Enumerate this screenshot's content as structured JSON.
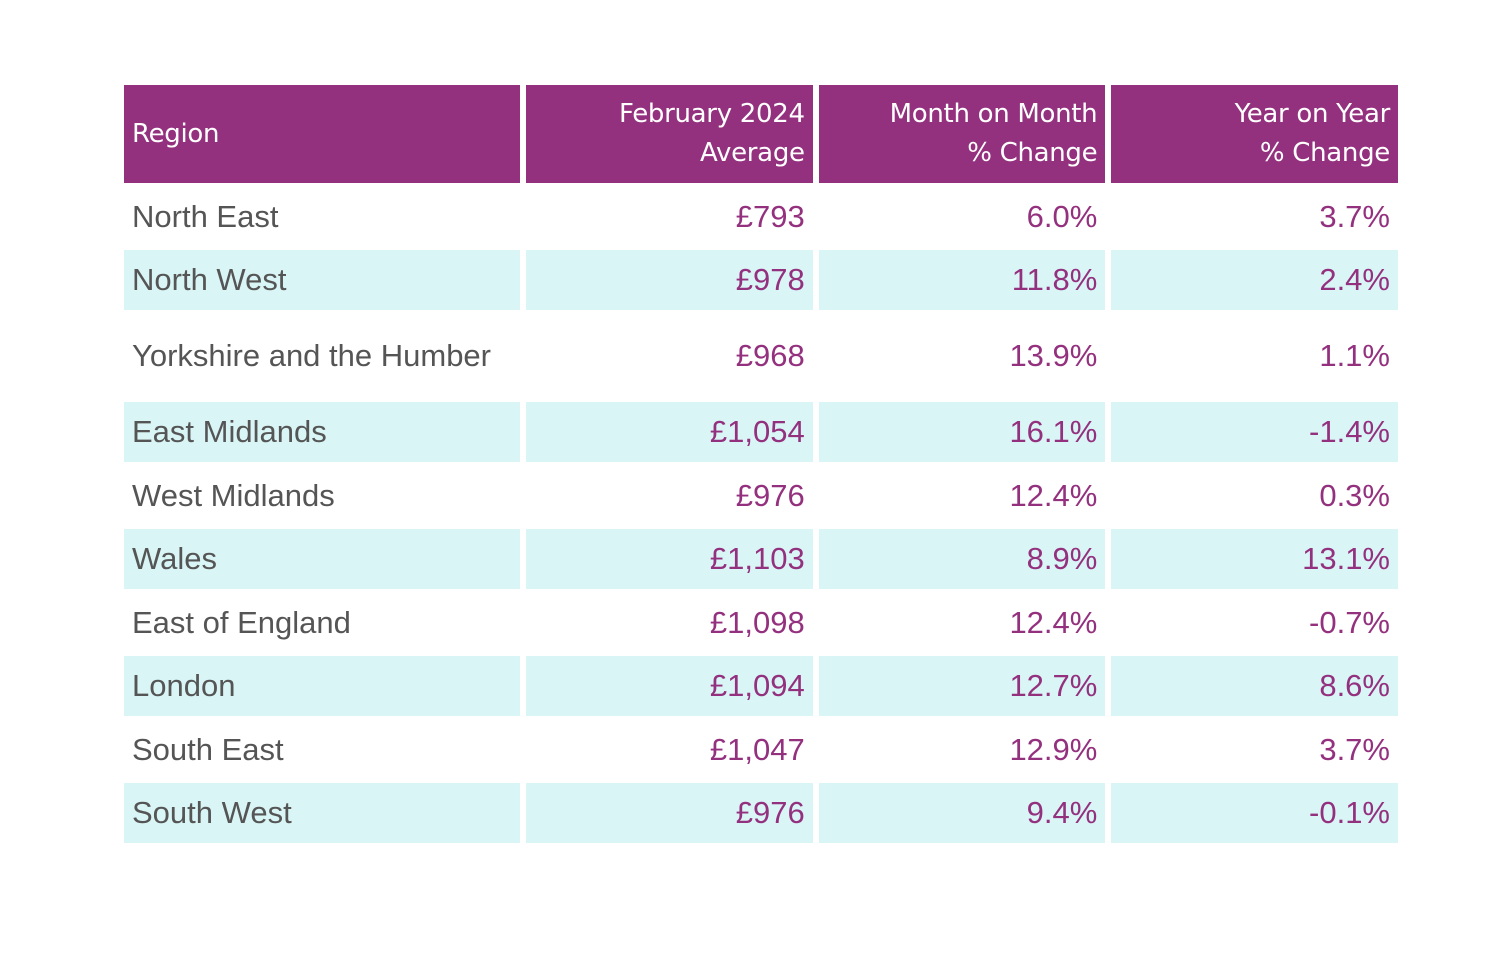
{
  "table": {
    "headers": {
      "region": "Region",
      "avg_line1": "February 2024",
      "avg_line2": "Average",
      "mom_line1": "Month on Month",
      "mom_line2": "% Change",
      "yoy_line1": "Year on Year",
      "yoy_line2": "% Change"
    },
    "rows": [
      {
        "region": "North East",
        "average": "£793",
        "mom": "6.0%",
        "yoy": "3.7%"
      },
      {
        "region": "North West",
        "average": "£978",
        "mom": "11.8%",
        "yoy": "2.4%"
      },
      {
        "region": "Yorkshire and the Humber",
        "average": "£968",
        "mom": "13.9%",
        "yoy": "1.1%"
      },
      {
        "region": "East Midlands",
        "average": "£1,054",
        "mom": "16.1%",
        "yoy": "-1.4%"
      },
      {
        "region": "West Midlands",
        "average": "£976",
        "mom": "12.4%",
        "yoy": "0.3%"
      },
      {
        "region": "Wales",
        "average": "£1,103",
        "mom": "8.9%",
        "yoy": "13.1%"
      },
      {
        "region": "East of England",
        "average": "£1,098",
        "mom": "12.4%",
        "yoy": "-0.7%"
      },
      {
        "region": "London",
        "average": "£1,094",
        "mom": "12.7%",
        "yoy": "8.6%"
      },
      {
        "region": "South East",
        "average": "£1,047",
        "mom": "12.9%",
        "yoy": "3.7%"
      },
      {
        "region": "South West",
        "average": "£976",
        "mom": "9.4%",
        "yoy": "-0.1%"
      }
    ]
  },
  "colors": {
    "header_bg": "#94317f",
    "header_text": "#ffffff",
    "stripe_bg": "#d9f5f6",
    "region_text": "#555555",
    "value_text": "#94317f"
  }
}
